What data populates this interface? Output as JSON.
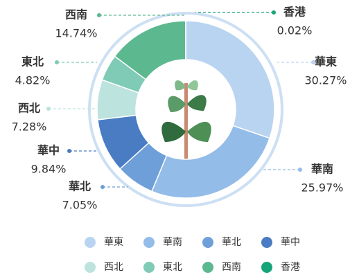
{
  "chart_data": {
    "type": "donut",
    "categories": [
      "華東",
      "華南",
      "華北",
      "華中",
      "西北",
      "東北",
      "西南",
      "香港"
    ],
    "values": [
      30.27,
      25.97,
      7.05,
      9.84,
      7.28,
      4.82,
      14.74,
      0.02
    ],
    "value_labels": [
      "30.27%",
      "25.97%",
      "7.05%",
      "9.84%",
      "7.28%",
      "4.82%",
      "14.74%",
      "0.02%"
    ],
    "colors": [
      "#b9d4f0",
      "#93bce8",
      "#6f9fd8",
      "#4a7cc4",
      "#bde3df",
      "#7fcbb5",
      "#5cb88f",
      "#16a47a"
    ],
    "legend": "bottom"
  }
}
